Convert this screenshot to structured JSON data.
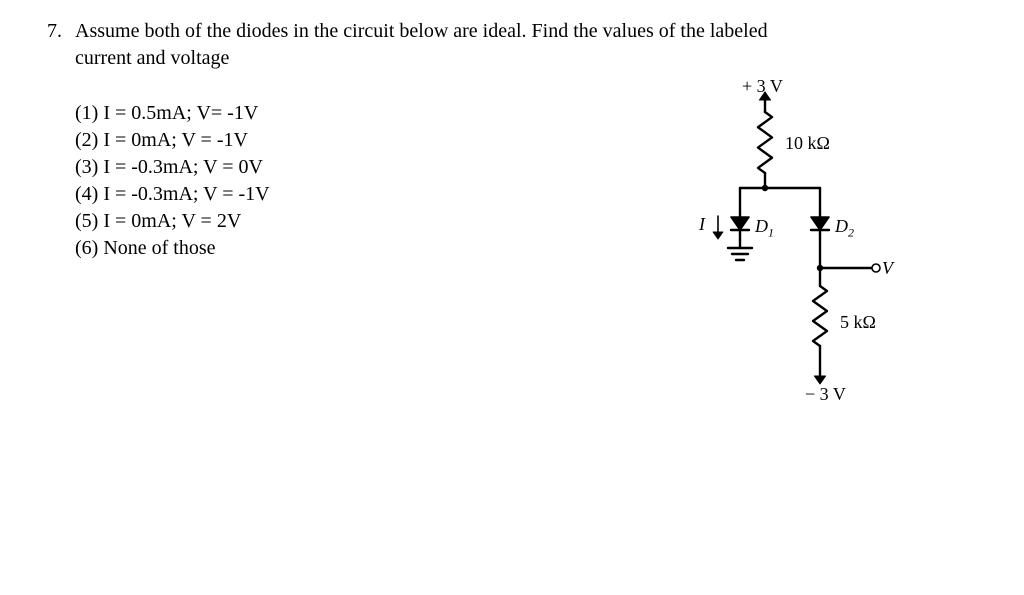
{
  "question": {
    "number": "7.",
    "text_line1": "Assume both of the diodes in the circuit below are ideal. Find the values of the labeled",
    "text_line2": "current and voltage"
  },
  "options": [
    "(1) I = 0.5mA; V= -1V",
    "(2) I = 0mA; V = -1V",
    "(3) I = -0.3mA; V = 0V",
    "(4) I = -0.3mA; V = -1V",
    "(5) I = 0mA; V = 2V",
    "(6) None of those"
  ],
  "circuit": {
    "top_voltage": "+ 3 V",
    "bottom_voltage": "− 3 V",
    "r1": "10 kΩ",
    "r2": "5 kΩ",
    "d1": "D",
    "d1_sub": "1",
    "d2": "D",
    "d2_sub": "2",
    "i_label": "I",
    "v_label": "V",
    "stroke": "#000000",
    "line_w": 2.4,
    "thin_w": 1.6
  }
}
